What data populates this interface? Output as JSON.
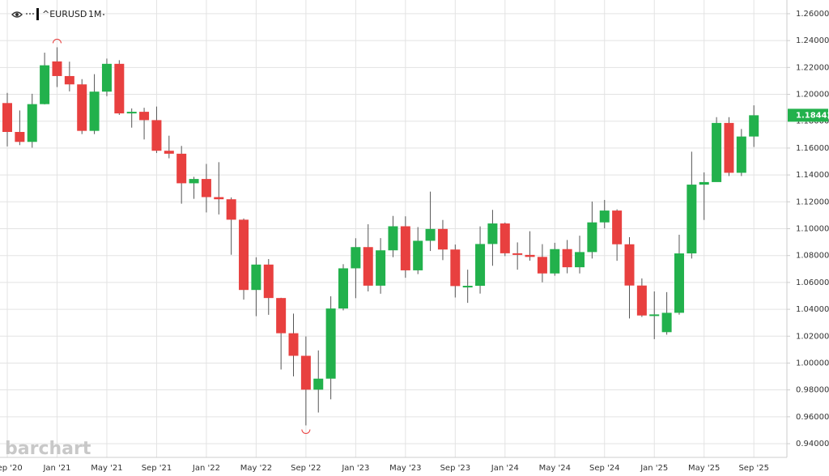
{
  "symbol": "^EURUSD",
  "interval": "1M",
  "watermark": "barchart",
  "chart_data": {
    "type": "candlestick",
    "categories": [
      "Sep '20",
      null,
      null,
      null,
      "Jan '21",
      null,
      null,
      null,
      "May '21",
      null,
      null,
      null,
      "Sep '21",
      null,
      null,
      null,
      "Jan '22",
      null,
      null,
      null,
      "May '22",
      null,
      null,
      null,
      "Sep '22",
      null,
      null,
      null,
      "Jan '23",
      null,
      null,
      null,
      "May '23",
      null,
      null,
      null,
      "Sep '23",
      null,
      null,
      null,
      "Jan '24",
      null,
      null,
      null,
      "May '24",
      null,
      null,
      null,
      "Sep '24",
      null,
      null,
      null,
      "Jan '25",
      null,
      null,
      null,
      "May '25",
      null,
      null,
      null,
      "Sep '25"
    ],
    "open": [
      1.1935,
      1.172,
      1.1646,
      1.1927,
      1.2245,
      1.2136,
      1.2074,
      1.1728,
      1.202,
      1.2227,
      1.1858,
      1.187,
      1.1808,
      1.158,
      1.1558,
      1.1338,
      1.137,
      1.1235,
      1.1219,
      1.1067,
      1.0544,
      1.0733,
      1.0484,
      1.0222,
      1.0054,
      0.9802,
      0.9884,
      1.0406,
      1.0705,
      1.0863,
      1.0576,
      1.0839,
      1.1018,
      1.069,
      1.091,
      1.0998,
      1.0845,
      1.0573,
      1.0575,
      1.0886,
      1.1039,
      1.0817,
      1.0805,
      1.079,
      1.0667,
      1.0848,
      1.0713,
      1.0826,
      1.1047,
      1.1135,
      1.0884,
      1.0577,
      1.0354,
      1.023,
      1.0374,
      1.0816,
      1.1328,
      1.1347,
      1.1787,
      1.1416,
      1.1686
    ],
    "high": [
      1.2011,
      1.188,
      1.2004,
      1.231,
      1.235,
      1.2243,
      1.2113,
      1.215,
      1.2266,
      1.2254,
      1.1895,
      1.19,
      1.1909,
      1.1692,
      1.1616,
      1.1386,
      1.1482,
      1.1495,
      1.1233,
      1.1076,
      1.0787,
      1.0774,
      1.0486,
      1.0368,
      1.0198,
      1.0094,
      1.0497,
      1.0736,
      1.0929,
      1.1033,
      1.093,
      1.1095,
      1.1092,
      1.1012,
      1.1276,
      1.1065,
      1.0882,
      1.0695,
      1.1017,
      1.114,
      1.1046,
      1.0898,
      1.0981,
      1.0885,
      1.0895,
      1.0916,
      1.0948,
      1.1202,
      1.1214,
      1.1144,
      1.0937,
      1.063,
      1.0533,
      1.0528,
      1.0955,
      1.1573,
      1.1419,
      1.183,
      1.183,
      1.1742,
      1.1918
    ],
    "low": [
      1.1612,
      1.1622,
      1.1603,
      1.1925,
      1.2054,
      1.2022,
      1.1704,
      1.1704,
      1.1986,
      1.1847,
      1.1752,
      1.1664,
      1.1563,
      1.1524,
      1.1186,
      1.1222,
      1.1121,
      1.1106,
      1.0806,
      1.0472,
      1.0349,
      1.0359,
      0.9952,
      0.9901,
      0.9536,
      0.9632,
      0.973,
      1.0392,
      1.0483,
      1.0533,
      1.0516,
      1.0788,
      1.0635,
      1.0662,
      1.0834,
      1.0766,
      1.0488,
      1.0448,
      1.0517,
      1.0724,
      1.0796,
      1.0695,
      1.0762,
      1.0601,
      1.065,
      1.0668,
      1.0667,
      1.0778,
      1.1002,
      1.0761,
      1.0332,
      1.0343,
      1.0178,
      1.0211,
      1.036,
      1.0778,
      1.1065,
      1.135,
      1.1392,
      1.1392,
      1.1608
    ],
    "close": [
      1.172,
      1.1646,
      1.1927,
      1.2216,
      1.2136,
      1.2074,
      1.1728,
      1.202,
      1.2227,
      1.1858,
      1.187,
      1.1808,
      1.158,
      1.1558,
      1.1338,
      1.137,
      1.1235,
      1.1219,
      1.1067,
      1.0544,
      1.0733,
      1.0484,
      1.0222,
      1.0054,
      0.9802,
      0.9884,
      1.0406,
      1.0705,
      1.0863,
      1.0576,
      1.0839,
      1.1018,
      1.069,
      1.091,
      1.0998,
      1.0845,
      1.0573,
      1.0575,
      1.0886,
      1.1039,
      1.0817,
      1.0805,
      1.079,
      1.0667,
      1.0848,
      1.0713,
      1.0826,
      1.1047,
      1.1135,
      1.0884,
      1.0577,
      1.0354,
      1.0362,
      1.0374,
      1.0816,
      1.1328,
      1.1347,
      1.1787,
      1.1416,
      1.1686,
      1.18442
    ],
    "up_color": "#22b14c",
    "down_color": "#e8403f",
    "last_price": {
      "value": 1.18442,
      "label": "1.18442"
    },
    "ylim": [
      0.9298,
      1.2702
    ],
    "yticks": [
      {
        "value": 0.94,
        "label": "0.94000"
      },
      {
        "value": 0.96,
        "label": "0.96000"
      },
      {
        "value": 0.98,
        "label": "0.98000"
      },
      {
        "value": 1.0,
        "label": "1.00000"
      },
      {
        "value": 1.02,
        "label": "1.02000"
      },
      {
        "value": 1.04,
        "label": "1.04000"
      },
      {
        "value": 1.06,
        "label": "1.06000"
      },
      {
        "value": 1.08,
        "label": "1.08000"
      },
      {
        "value": 1.1,
        "label": "1.10000"
      },
      {
        "value": 1.12,
        "label": "1.12000"
      },
      {
        "value": 1.14,
        "label": "1.14000"
      },
      {
        "value": 1.16,
        "label": "1.16000"
      },
      {
        "value": 1.18,
        "label": "1.18000"
      },
      {
        "value": 1.2,
        "label": "1.20000"
      },
      {
        "value": 1.22,
        "label": "1.22000"
      },
      {
        "value": 1.24,
        "label": "1.24000"
      },
      {
        "value": 1.26,
        "label": "1.26000"
      }
    ],
    "grid": true
  }
}
